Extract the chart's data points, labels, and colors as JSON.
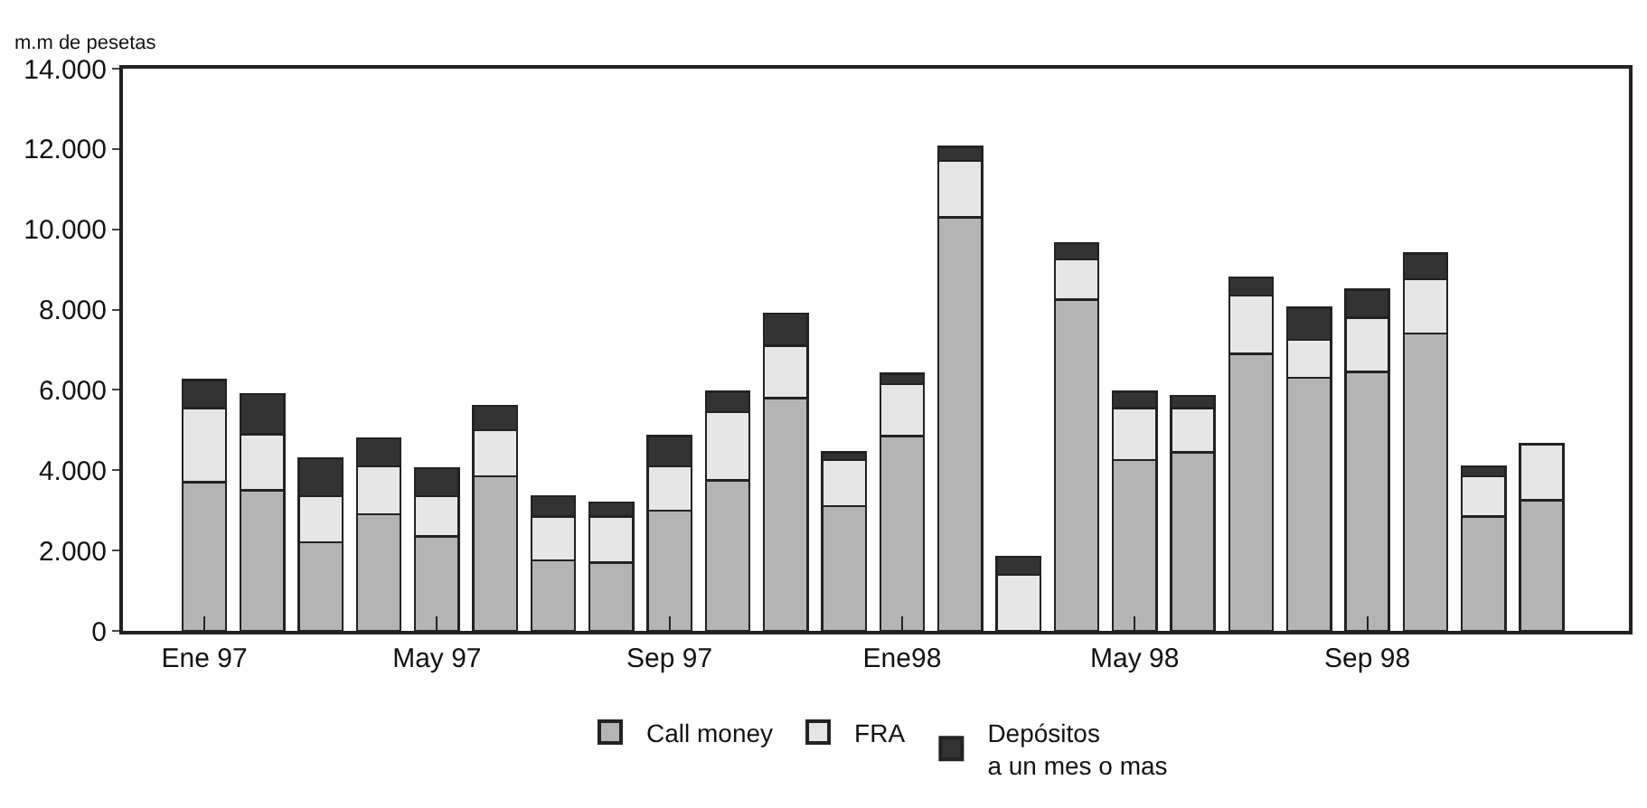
{
  "chart_data": {
    "type": "bar",
    "stacked": true,
    "ylabel": "m.m de pesetas",
    "categories": [
      "Ene 97",
      null,
      null,
      null,
      "May 97",
      null,
      null,
      null,
      "Sep 97",
      null,
      null,
      null,
      "Ene98",
      null,
      null,
      null,
      "May 98",
      null,
      null,
      null,
      "Sep 98",
      null,
      null,
      null
    ],
    "series": [
      {
        "name": "Call money",
        "color": "#b4b4b4",
        "values": [
          3700,
          3500,
          2200,
          2900,
          2350,
          3850,
          1750,
          1700,
          3000,
          3750,
          5800,
          3100,
          4850,
          10300,
          0,
          8250,
          4250,
          4450,
          6900,
          6300,
          6450,
          7400,
          2850,
          3250
        ]
      },
      {
        "name": "FRA",
        "color": "#e6e6e6",
        "values": [
          1850,
          1400,
          1150,
          1200,
          1000,
          1150,
          1100,
          1150,
          1100,
          1700,
          1300,
          1150,
          1300,
          1400,
          1400,
          1000,
          1300,
          1100,
          1450,
          950,
          1350,
          1350,
          1000,
          1400
        ]
      },
      {
        "name": "Depósitos\na un mes o mas",
        "color": "#333333",
        "values": [
          700,
          1000,
          950,
          700,
          700,
          600,
          500,
          350,
          750,
          500,
          800,
          200,
          250,
          350,
          450,
          400,
          400,
          300,
          450,
          800,
          700,
          650,
          250,
          0
        ]
      }
    ],
    "ylim": [
      0,
      14000
    ],
    "yticks": [
      0,
      {
        "value": 2000,
        "label": "2.000"
      },
      {
        "value": 4000,
        "label": "4.000"
      },
      {
        "value": 6000,
        "label": "6.000"
      },
      {
        "value": 8000,
        "label": "8.000"
      },
      {
        "value": 10000,
        "label": "10.000"
      },
      {
        "value": 12000,
        "label": "12.000"
      },
      {
        "value": 14000,
        "label": "14.000"
      }
    ],
    "grid": false,
    "legend": "bottom"
  }
}
